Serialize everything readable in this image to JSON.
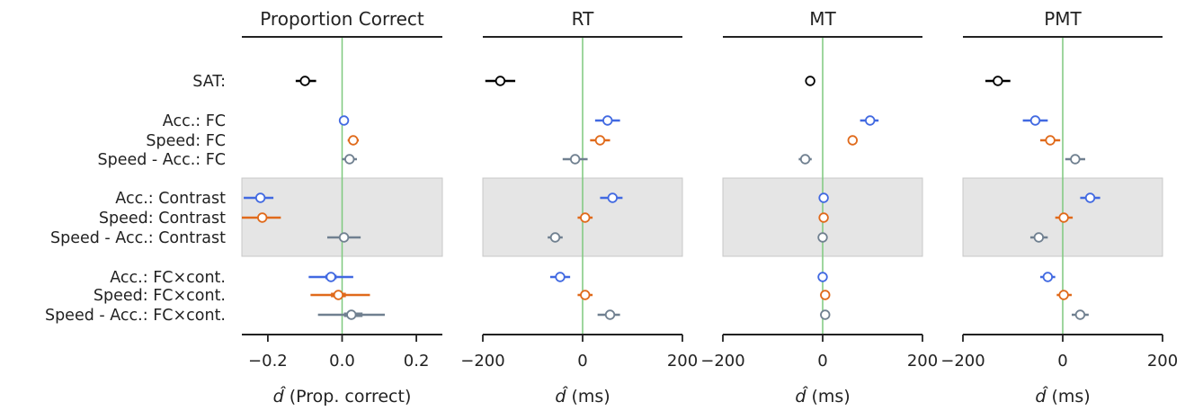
{
  "chart_data": {
    "type": "scatter",
    "row_labels": [
      "SAT:",
      "Acc.:  FC",
      "Speed:  FC",
      "Speed - Acc.:  FC",
      "Acc.:  Contrast",
      "Speed:  Contrast",
      "Speed - Acc.:  Contrast",
      "Acc.:  FC×cont.",
      "Speed:  FC×cont.",
      "Speed - Acc.:  FC×cont."
    ],
    "row_groups": [
      "SAT",
      "Acc.",
      "Speed",
      "Speed - Acc."
    ],
    "colors": {
      "SAT": "#000000",
      "Acc.": "#4169e1",
      "Speed": "#e06a1b",
      "Speed - Acc.": "#708090"
    },
    "shaded_rows": [
      4,
      6
    ],
    "reference_line_color": "#7fc97f",
    "panels": [
      {
        "title": "Proportion Correct",
        "xlabel_symbol": "d̂",
        "xlabel_unit": "(Prop. correct)",
        "xlim": [
          -0.27,
          0.27
        ],
        "xticks": [
          -0.2,
          0.0,
          0.2
        ],
        "xtick_labels": [
          "−0.2",
          "0.0",
          "0.2"
        ],
        "estimates": [
          -0.1,
          0.005,
          0.03,
          0.02,
          -0.22,
          -0.215,
          0.005,
          -0.03,
          -0.01,
          0.025
        ],
        "ci_lower": [
          -0.125,
          0.0,
          0.015,
          0.0,
          -0.265,
          -0.27,
          -0.04,
          -0.09,
          -0.085,
          -0.065
        ],
        "ci_upper": [
          -0.07,
          0.01,
          0.045,
          0.04,
          -0.185,
          -0.165,
          0.05,
          0.03,
          0.075,
          0.115
        ],
        "ci_inner_lower": [
          null,
          null,
          null,
          null,
          null,
          null,
          null,
          -0.045,
          -0.03,
          0.005
        ],
        "ci_inner_upper": [
          null,
          null,
          null,
          null,
          null,
          null,
          null,
          -0.015,
          0.01,
          0.055
        ]
      },
      {
        "title": "RT",
        "xlabel_symbol": "d̂",
        "xlabel_unit": "(ms)",
        "xlim": [
          -200,
          200
        ],
        "xticks": [
          -200,
          0,
          200
        ],
        "xtick_labels": [
          "−200",
          "0",
          "200"
        ],
        "estimates": [
          -165,
          50,
          35,
          -15,
          60,
          5,
          -55,
          -45,
          5,
          55
        ],
        "ci_lower": [
          -195,
          25,
          15,
          -40,
          35,
          -10,
          -70,
          -65,
          -10,
          30
        ],
        "ci_upper": [
          -135,
          75,
          55,
          10,
          80,
          20,
          -40,
          -25,
          20,
          75
        ],
        "ci_inner_lower": [
          null,
          null,
          null,
          null,
          null,
          null,
          null,
          null,
          null,
          null
        ],
        "ci_inner_upper": [
          null,
          null,
          null,
          null,
          null,
          null,
          null,
          null,
          null,
          null
        ]
      },
      {
        "title": "MT",
        "xlabel_symbol": "d̂",
        "xlabel_unit": "(ms)",
        "xlim": [
          -200,
          200
        ],
        "xticks": [
          -200,
          0,
          200
        ],
        "xtick_labels": [
          "−200",
          "0",
          "200"
        ],
        "estimates": [
          -25,
          95,
          60,
          -35,
          2,
          2,
          0,
          0,
          5,
          5
        ],
        "ci_lower": [
          -30,
          75,
          52,
          -48,
          -3,
          -3,
          -5,
          -5,
          0,
          -2
        ],
        "ci_upper": [
          -20,
          112,
          68,
          -22,
          7,
          7,
          5,
          5,
          10,
          12
        ],
        "ci_inner_lower": [
          null,
          null,
          null,
          null,
          null,
          null,
          null,
          null,
          null,
          null
        ],
        "ci_inner_upper": [
          null,
          null,
          null,
          null,
          null,
          null,
          null,
          null,
          null,
          null
        ]
      },
      {
        "title": "PMT",
        "xlabel_symbol": "d̂",
        "xlabel_unit": "(ms)",
        "xlim": [
          -200,
          200
        ],
        "xticks": [
          -200,
          0,
          200
        ],
        "xtick_labels": [
          "−200",
          "0",
          "200"
        ],
        "estimates": [
          -130,
          -55,
          -25,
          25,
          55,
          2,
          -48,
          -30,
          2,
          35
        ],
        "ci_lower": [
          -155,
          -80,
          -45,
          5,
          35,
          -15,
          -65,
          -45,
          -12,
          18
        ],
        "ci_upper": [
          -105,
          -30,
          -5,
          45,
          75,
          20,
          -30,
          -15,
          18,
          52
        ],
        "ci_inner_lower": [
          null,
          null,
          null,
          null,
          null,
          null,
          null,
          null,
          null,
          null
        ],
        "ci_inner_upper": [
          null,
          null,
          null,
          null,
          null,
          null,
          null,
          null,
          null,
          null
        ]
      }
    ]
  }
}
